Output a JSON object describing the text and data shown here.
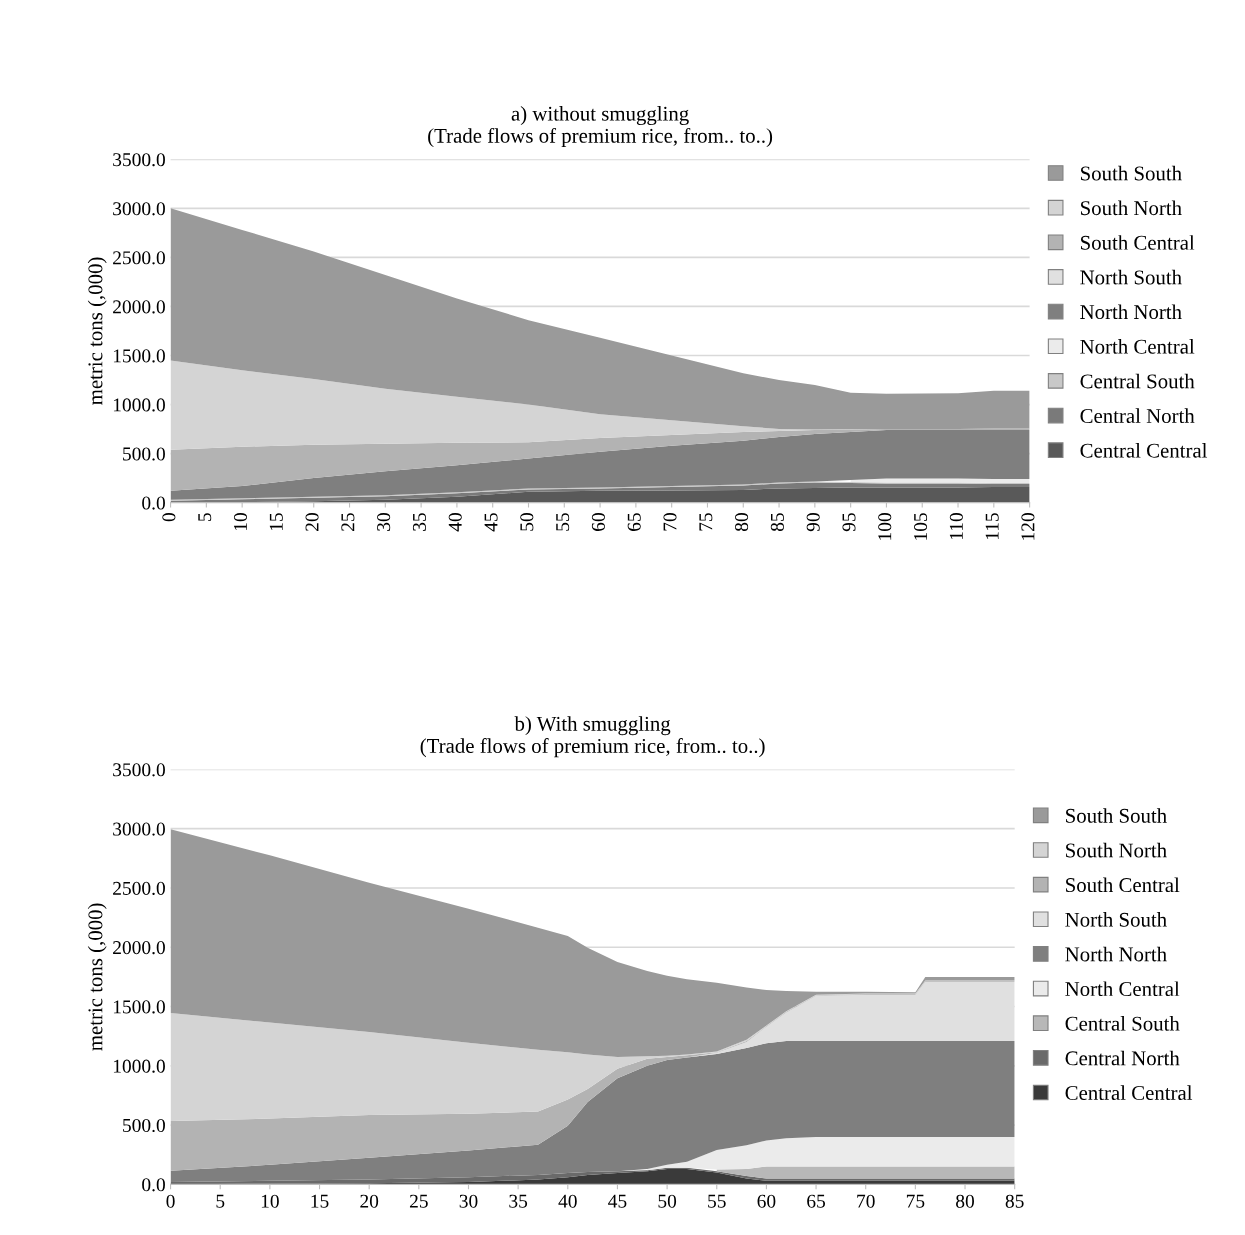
{
  "chart_data": [
    {
      "type": "area",
      "stacked": true,
      "title": "a) without smuggling",
      "subtitle": "(Trade flows of premium rice, from.. to..)",
      "ylabel": "metric tons (,000)",
      "x": [
        0,
        10,
        20,
        30,
        40,
        50,
        60,
        70,
        80,
        85,
        90,
        95,
        100,
        110,
        115,
        120
      ],
      "xlim": [
        0,
        120
      ],
      "xticks": [
        0,
        5,
        10,
        15,
        20,
        25,
        30,
        35,
        40,
        45,
        50,
        55,
        60,
        65,
        70,
        75,
        80,
        85,
        90,
        95,
        100,
        105,
        110,
        115,
        120
      ],
      "ylim": [
        0,
        3500
      ],
      "yticks": [
        {
          "value": 0,
          "label": "0.0"
        },
        {
          "value": 500,
          "label": "500.0"
        },
        {
          "value": 1000,
          "label": "1000.0"
        },
        {
          "value": 1500,
          "label": "1500.0"
        },
        {
          "value": 2000,
          "label": "2000.0"
        },
        {
          "value": 2500,
          "label": "2500.0"
        },
        {
          "value": 3000,
          "label": "3000.0"
        },
        {
          "value": 3500,
          "label": "3500.0"
        }
      ],
      "grid": "y",
      "legend": "right",
      "series": [
        {
          "name": "Central Central",
          "color": "#595959",
          "values": [
            0,
            5,
            15,
            30,
            60,
            110,
            120,
            125,
            130,
            145,
            150,
            155,
            155,
            155,
            160,
            160
          ]
        },
        {
          "name": "Central North",
          "color": "#7a7a7a",
          "values": [
            20,
            30,
            35,
            35,
            35,
            25,
            25,
            35,
            45,
            50,
            55,
            45,
            40,
            40,
            30,
            30
          ]
        },
        {
          "name": "Central South",
          "color": "#c8c8c8",
          "values": [
            10,
            10,
            10,
            10,
            10,
            10,
            10,
            10,
            10,
            10,
            10,
            10,
            10,
            10,
            10,
            10
          ]
        },
        {
          "name": "North Central",
          "color": "#ebebeb",
          "values": [
            null,
            null,
            null,
            null,
            null,
            null,
            null,
            null,
            null,
            null,
            null,
            20,
            40,
            40,
            40,
            40
          ]
        },
        {
          "name": "North North",
          "color": "#7f7f7f",
          "values": [
            90,
            125,
            190,
            245,
            275,
            305,
            365,
            410,
            445,
            465,
            485,
            490,
            495,
            495,
            500,
            500
          ]
        },
        {
          "name": "North South",
          "color": "#e0e0e0",
          "values": [
            null,
            null,
            null,
            null,
            null,
            null,
            null,
            null,
            null,
            null,
            null,
            null,
            null,
            null,
            null,
            null
          ]
        },
        {
          "name": "South Central",
          "color": "#b3b3b3",
          "values": [
            420,
            400,
            340,
            280,
            230,
            165,
            140,
            110,
            90,
            60,
            40,
            25,
            10,
            10,
            15,
            15
          ]
        },
        {
          "name": "South North",
          "color": "#d4d4d4",
          "values": [
            910,
            780,
            670,
            560,
            470,
            385,
            240,
            150,
            60,
            20,
            5,
            3,
            2,
            2,
            2,
            2
          ]
        },
        {
          "name": "South South",
          "color": "#9a9a9a",
          "values": [
            1550,
            1430,
            1300,
            1160,
            1000,
            860,
            780,
            660,
            540,
            500,
            455,
            372,
            358,
            363,
            383,
            383
          ]
        }
      ]
    },
    {
      "type": "area",
      "stacked": true,
      "title": "b) With smuggling",
      "subtitle": "(Trade flows of premium rice, from.. to..)",
      "ylabel": "metric tons (,000)",
      "x": [
        0,
        10,
        20,
        30,
        37,
        40,
        42,
        45,
        48,
        50,
        52,
        55,
        58,
        60,
        62,
        65,
        70,
        75,
        76,
        85
      ],
      "xlim": [
        0,
        85
      ],
      "xticks": [
        0,
        5,
        10,
        15,
        20,
        25,
        30,
        35,
        40,
        45,
        50,
        55,
        60,
        65,
        70,
        75,
        80,
        85
      ],
      "ylim": [
        0,
        3500
      ],
      "yticks": [
        {
          "value": 0,
          "label": "0.0"
        },
        {
          "value": 500,
          "label": "500.0"
        },
        {
          "value": 1000,
          "label": "1000.0"
        },
        {
          "value": 1500,
          "label": "1500.0"
        },
        {
          "value": 2000,
          "label": "2000.0"
        },
        {
          "value": 2500,
          "label": "2500.0"
        },
        {
          "value": 3000,
          "label": "3000.0"
        },
        {
          "value": 3500,
          "label": "3500.0"
        }
      ],
      "grid": "y",
      "legend": "right",
      "series": [
        {
          "name": "Central Central",
          "color": "#3a3a3a",
          "values": [
            0,
            5,
            10,
            20,
            40,
            60,
            80,
            95,
            110,
            130,
            130,
            100,
            50,
            30,
            30,
            30,
            30,
            30,
            30,
            30
          ]
        },
        {
          "name": "Central North",
          "color": "#6a6a6a",
          "values": [
            20,
            25,
            30,
            40,
            40,
            35,
            25,
            15,
            10,
            10,
            10,
            10,
            20,
            20,
            20,
            20,
            20,
            20,
            20,
            20
          ]
        },
        {
          "name": "Central South",
          "color": "#b8b8b8",
          "values": [
            null,
            null,
            null,
            null,
            null,
            null,
            null,
            null,
            null,
            null,
            null,
            15,
            60,
            100,
            100,
            100,
            100,
            100,
            100,
            100
          ]
        },
        {
          "name": "North Central",
          "color": "#ebebeb",
          "values": [
            null,
            null,
            null,
            null,
            null,
            null,
            null,
            null,
            10,
            25,
            50,
            165,
            200,
            220,
            240,
            250,
            250,
            250,
            250,
            250
          ]
        },
        {
          "name": "North North",
          "color": "#7f7f7f",
          "values": [
            95,
            135,
            185,
            225,
            255,
            400,
            590,
            785,
            870,
            885,
            880,
            810,
            820,
            820,
            820,
            810,
            810,
            810,
            810,
            810
          ]
        },
        {
          "name": "North South",
          "color": "#e0e0e0",
          "values": [
            null,
            null,
            null,
            null,
            null,
            null,
            null,
            null,
            null,
            null,
            0,
            10,
            50,
            140,
            240,
            380,
            390,
            390,
            500,
            500
          ]
        },
        {
          "name": "South Central",
          "color": "#b3b3b3",
          "values": [
            420,
            390,
            360,
            310,
            280,
            220,
            110,
            80,
            60,
            25,
            20,
            5,
            10,
            5,
            5,
            5,
            5,
            5,
            5,
            5
          ]
        },
        {
          "name": "South North",
          "color": "#d4d4d4",
          "values": [
            910,
            810,
            700,
            600,
            520,
            400,
            290,
            100,
            20,
            10,
            5,
            5,
            10,
            5,
            5,
            5,
            5,
            5,
            5,
            5
          ]
        },
        {
          "name": "South South",
          "color": "#9a9a9a",
          "values": [
            1550,
            1410,
            1260,
            1130,
            1030,
            980,
            900,
            800,
            720,
            675,
            635,
            580,
            440,
            300,
            170,
            25,
            15,
            10,
            30,
            30
          ]
        }
      ]
    }
  ]
}
